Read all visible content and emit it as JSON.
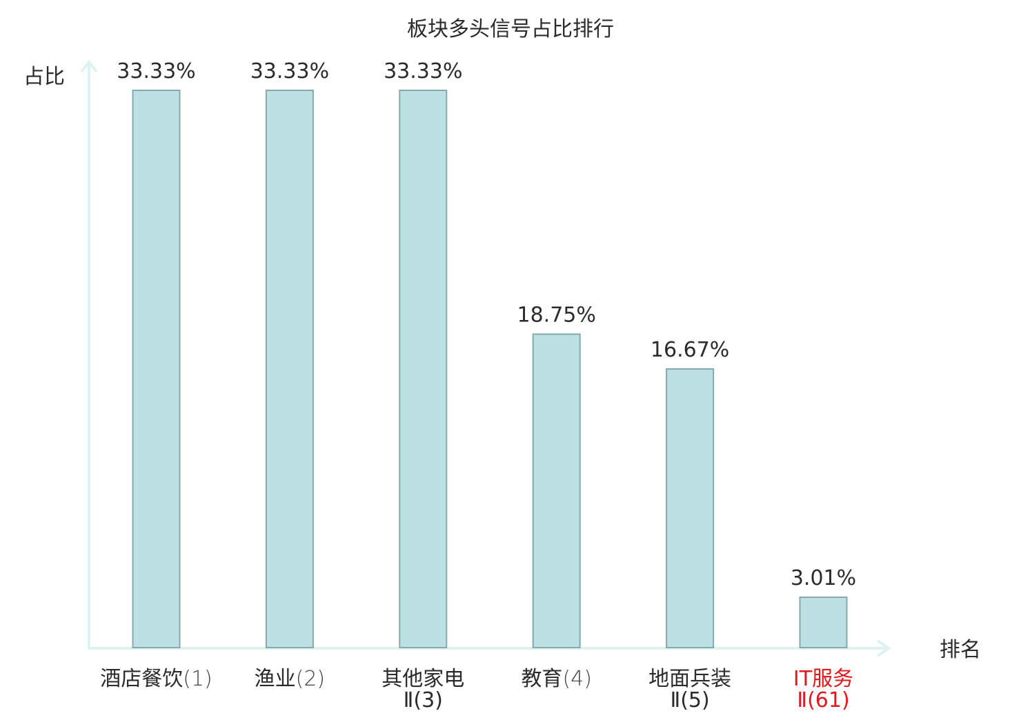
{
  "chart_data": {
    "type": "bar",
    "title": "板块多头信号占比排行",
    "ylabel": "占比",
    "xlabel": "排名",
    "ylim": [
      0,
      33.33
    ],
    "grid": false,
    "colors": {
      "bar_fill": "#bde0e3",
      "bar_stroke": "#86a9ac",
      "axis": "#def2f0",
      "text": "#2b2b2b",
      "highlight": "#e0191c"
    },
    "categories": [
      {
        "name": "酒店餐饮",
        "rank": "(1)",
        "name_line2": "",
        "highlight": false
      },
      {
        "name": "渔业",
        "rank": "(2)",
        "name_line2": "",
        "highlight": false
      },
      {
        "name": "其他家电",
        "rank": "",
        "name_line2": "Ⅱ(3)",
        "highlight": false
      },
      {
        "name": "教育",
        "rank": "(4)",
        "name_line2": "",
        "highlight": false
      },
      {
        "name": "地面兵装",
        "rank": "",
        "name_line2": "Ⅱ(5)",
        "highlight": false
      },
      {
        "name": "IT服务",
        "rank": "",
        "name_line2": "Ⅱ(61)",
        "highlight": true
      }
    ],
    "values": [
      33.33,
      33.33,
      33.33,
      18.75,
      16.67,
      3.01
    ],
    "value_labels": [
      "33.33%",
      "33.33%",
      "33.33%",
      "18.75%",
      "16.67%",
      "3.01%"
    ]
  }
}
